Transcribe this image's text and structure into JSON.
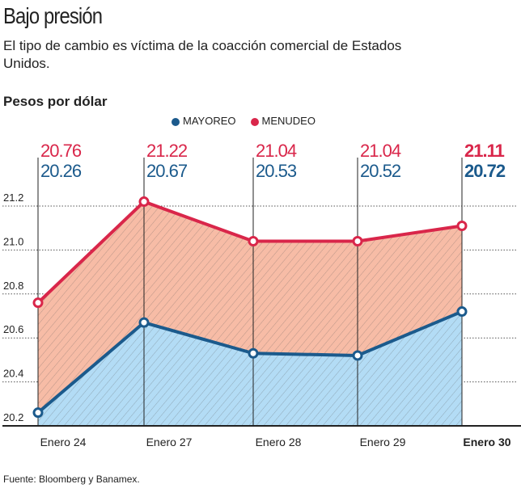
{
  "title": "Bajo presión",
  "subtitle": "El tipo de cambio es víctima de la coacción comercial de Estados Unidos.",
  "unit_label": "Pesos por dólar",
  "source": "Fuente: Bloomberg y Banamex.",
  "chart_data": {
    "type": "area",
    "categories": [
      "Enero 24",
      "Enero 27",
      "Enero 28",
      "Enero 29",
      "Enero 30"
    ],
    "series": [
      {
        "name": "MAYOREO",
        "values": [
          20.26,
          20.67,
          20.53,
          20.52,
          20.72
        ],
        "color": "#1b5a8c",
        "fill": "#b3dcf5"
      },
      {
        "name": "MENUDEO",
        "values": [
          20.76,
          21.22,
          21.04,
          21.04,
          21.11
        ],
        "color": "#d9264a",
        "fill": "#f7bca6"
      }
    ],
    "value_labels": {
      "MENUDEO": [
        "20.76",
        "21.22",
        "21.04",
        "21.04",
        "21.11"
      ],
      "MAYOREO": [
        "20.26",
        "20.67",
        "20.53",
        "20.52",
        "20.72"
      ]
    },
    "yticks": [
      "20.2",
      "20.4",
      "20.6",
      "20.8",
      "21.0",
      "21.2"
    ],
    "ylim": [
      20.2,
      21.2
    ],
    "grid": true,
    "legend": "top-center",
    "highlight_last": true
  }
}
